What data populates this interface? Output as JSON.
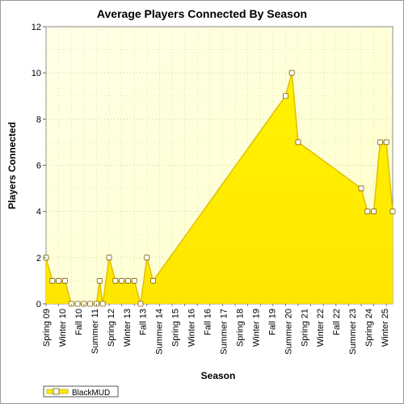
{
  "chart_data": {
    "type": "area",
    "title": "Average Players Connected By Season",
    "xlabel": "Season",
    "ylabel": "Players Connected",
    "ylim": [
      0,
      12
    ],
    "y_ticks": [
      0,
      2,
      4,
      6,
      8,
      10,
      12
    ],
    "x_tick_labels": [
      "Spring 09",
      "Winter 10",
      "Fall 10",
      "Summer 11",
      "Spring 12",
      "Winter 13",
      "Fall 13",
      "Summer 14",
      "Spring 15",
      "Winter 16",
      "Fall 16",
      "Summer 17",
      "Spring 18",
      "Winter 19",
      "Fall 19",
      "Summer 20",
      "Spring 21",
      "Winter 22",
      "Fall 22",
      "Summer 23",
      "Spring 24",
      "Winter 25"
    ],
    "grid": true,
    "legend_position": "bottom-left",
    "series": [
      {
        "name": "BlackMUD",
        "color": "#ffee00",
        "points": [
          {
            "x": 0,
            "y": 2
          },
          {
            "x": 0.5,
            "y": 1
          },
          {
            "x": 1,
            "y": 1
          },
          {
            "x": 1.5,
            "y": 1
          },
          {
            "x": 2,
            "y": 0
          },
          {
            "x": 2.5,
            "y": 0
          },
          {
            "x": 3,
            "y": 0
          },
          {
            "x": 3.5,
            "y": 0
          },
          {
            "x": 4,
            "y": 0
          },
          {
            "x": 4.25,
            "y": 1
          },
          {
            "x": 4.5,
            "y": 0
          },
          {
            "x": 5,
            "y": 2
          },
          {
            "x": 5.5,
            "y": 1
          },
          {
            "x": 6,
            "y": 1
          },
          {
            "x": 6.5,
            "y": 1
          },
          {
            "x": 7,
            "y": 1
          },
          {
            "x": 7.5,
            "y": 0
          },
          {
            "x": 8,
            "y": 2
          },
          {
            "x": 8.5,
            "y": 1
          },
          {
            "x": 19,
            "y": 9
          },
          {
            "x": 19.5,
            "y": 10
          },
          {
            "x": 20,
            "y": 7
          },
          {
            "x": 25,
            "y": 5
          },
          {
            "x": 25.5,
            "y": 4
          },
          {
            "x": 26,
            "y": 4
          },
          {
            "x": 26.5,
            "y": 7
          },
          {
            "x": 27,
            "y": 7
          },
          {
            "x": 27.5,
            "y": 4
          }
        ]
      }
    ]
  }
}
